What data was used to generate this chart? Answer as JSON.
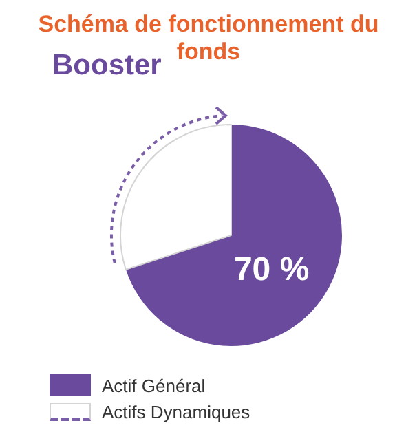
{
  "chart_data": {
    "type": "pie",
    "title": "Schéma de fonctionnement du fonds",
    "categories": [
      "Actif Général",
      "Actifs Dynamiques"
    ],
    "values": [
      70,
      30
    ],
    "colors": [
      "#6a4a9c",
      "#ffffff"
    ],
    "value_labels": [
      "70 %",
      null
    ],
    "annotations": [
      "Booster"
    ],
    "legend": "bottom"
  }
}
